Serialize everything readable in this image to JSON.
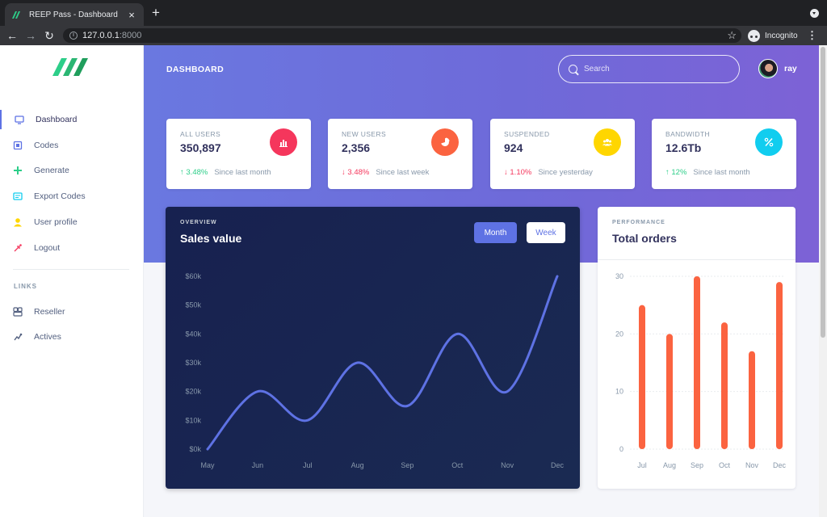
{
  "browser": {
    "tab_title": "REEP Pass - Dashboard",
    "url_host": "127.0.0.1",
    "url_port": ":8000",
    "incognito_label": "Incognito"
  },
  "sidebar": {
    "items": [
      {
        "label": "Dashboard",
        "icon": "monitor-icon",
        "icon_color": "#5e72e4",
        "active": true
      },
      {
        "label": "Codes",
        "icon": "code-icon",
        "icon_color": "#5e72e4",
        "active": false
      },
      {
        "label": "Generate",
        "icon": "plus-icon",
        "icon_color": "#2dce89",
        "active": false
      },
      {
        "label": "Export Codes",
        "icon": "export-icon",
        "icon_color": "#11cdef",
        "active": false
      },
      {
        "label": "User profile",
        "icon": "user-icon",
        "icon_color": "#ffd600",
        "active": false
      },
      {
        "label": "Logout",
        "icon": "logout-icon",
        "icon_color": "#f5365c",
        "active": false
      }
    ],
    "links_heading": "LINKS",
    "links": [
      {
        "label": "Reseller",
        "icon": "reseller-icon"
      },
      {
        "label": "Actives",
        "icon": "actives-icon"
      }
    ]
  },
  "header": {
    "title": "DASHBOARD",
    "search_placeholder": "Search",
    "user_name": "ray"
  },
  "stats": [
    {
      "title": "ALL USERS",
      "value": "350,897",
      "icon": "bar-chart-icon",
      "icon_bg": "#f5365c",
      "change": "3.48%",
      "direction": "up",
      "since": "Since last month"
    },
    {
      "title": "NEW USERS",
      "value": "2,356",
      "icon": "pie-chart-icon",
      "icon_bg": "#fb6340",
      "change": "3.48%",
      "direction": "down",
      "since": "Since last week"
    },
    {
      "title": "SUSPENDED",
      "value": "924",
      "icon": "users-icon",
      "icon_bg": "#ffd600",
      "change": "1.10%",
      "direction": "down",
      "since": "Since yesterday"
    },
    {
      "title": "BANDWIDTH",
      "value": "12.6Tb",
      "icon": "percent-icon",
      "icon_bg": "#11cdef",
      "change": "12%",
      "direction": "up",
      "since": "Since last month"
    }
  ],
  "sales_card": {
    "kicker": "OVERVIEW",
    "title": "Sales value",
    "month_label": "Month",
    "week_label": "Week"
  },
  "orders_card": {
    "kicker": "PERFORMANCE",
    "title": "Total orders"
  },
  "chart_data": [
    {
      "type": "line",
      "title": "Sales value",
      "x": [
        "May",
        "Jun",
        "Jul",
        "Aug",
        "Sep",
        "Oct",
        "Nov",
        "Dec"
      ],
      "values": [
        0,
        20,
        10,
        30,
        15,
        40,
        20,
        60
      ],
      "ytick_labels": [
        "$0k",
        "$10k",
        "$20k",
        "$30k",
        "$40k",
        "$50k",
        "$60k"
      ],
      "ylim": [
        0,
        60
      ],
      "color": "#5e72e4",
      "grid": false
    },
    {
      "type": "bar",
      "title": "Total orders",
      "categories": [
        "Jul",
        "Aug",
        "Sep",
        "Oct",
        "Nov",
        "Dec"
      ],
      "values": [
        25,
        20,
        30,
        22,
        17,
        29
      ],
      "yticks": [
        0,
        10,
        20,
        30
      ],
      "ylim": [
        0,
        30
      ],
      "color": "#fb6340",
      "grid": true
    }
  ]
}
